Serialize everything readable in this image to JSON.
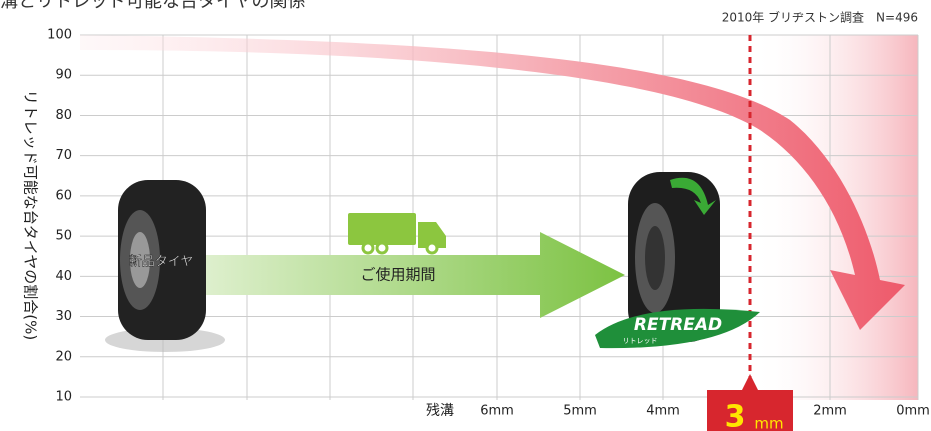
{
  "header": {
    "title": "溝とリトレッド可能な台タイヤの関係",
    "note": "2010年 ブリヂストン調査　N=496"
  },
  "axis": {
    "y_label": "リトレッド可能な台タイヤの割合(%)",
    "ylim": [
      10,
      100
    ],
    "yticks": [
      10,
      20,
      30,
      40,
      50,
      60,
      70,
      80,
      90,
      100
    ],
    "x_prefix": "残溝",
    "x_labels": [
      "6mm",
      "5mm",
      "4mm",
      "2mm",
      "0mm"
    ]
  },
  "highlight": {
    "number": "3",
    "unit": "mm"
  },
  "labels": {
    "new_tire": "新品タイヤ",
    "period": "ご使用期間",
    "retread": "RETREAD",
    "retread_kana": "リトレッド"
  }
}
